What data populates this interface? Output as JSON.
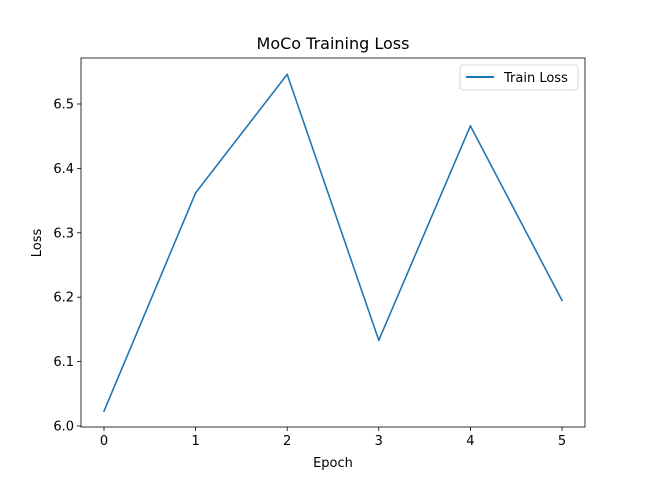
{
  "chart_data": {
    "type": "line",
    "title": "MoCo Training Loss",
    "xlabel": "Epoch",
    "ylabel": "Loss",
    "x": [
      0,
      1,
      2,
      3,
      4,
      5
    ],
    "series": [
      {
        "name": "Train Loss",
        "values": [
          6.023,
          6.362,
          6.546,
          6.133,
          6.466,
          6.195
        ],
        "color": "#1f77b4"
      }
    ],
    "xticks": [
      "0",
      "1",
      "2",
      "3",
      "4",
      "5"
    ],
    "yticks": [
      "6.0",
      "6.1",
      "6.2",
      "6.3",
      "6.4",
      "6.5"
    ],
    "ylim": [
      6.0,
      6.5
    ],
    "grid": false,
    "legend": "top-right"
  }
}
